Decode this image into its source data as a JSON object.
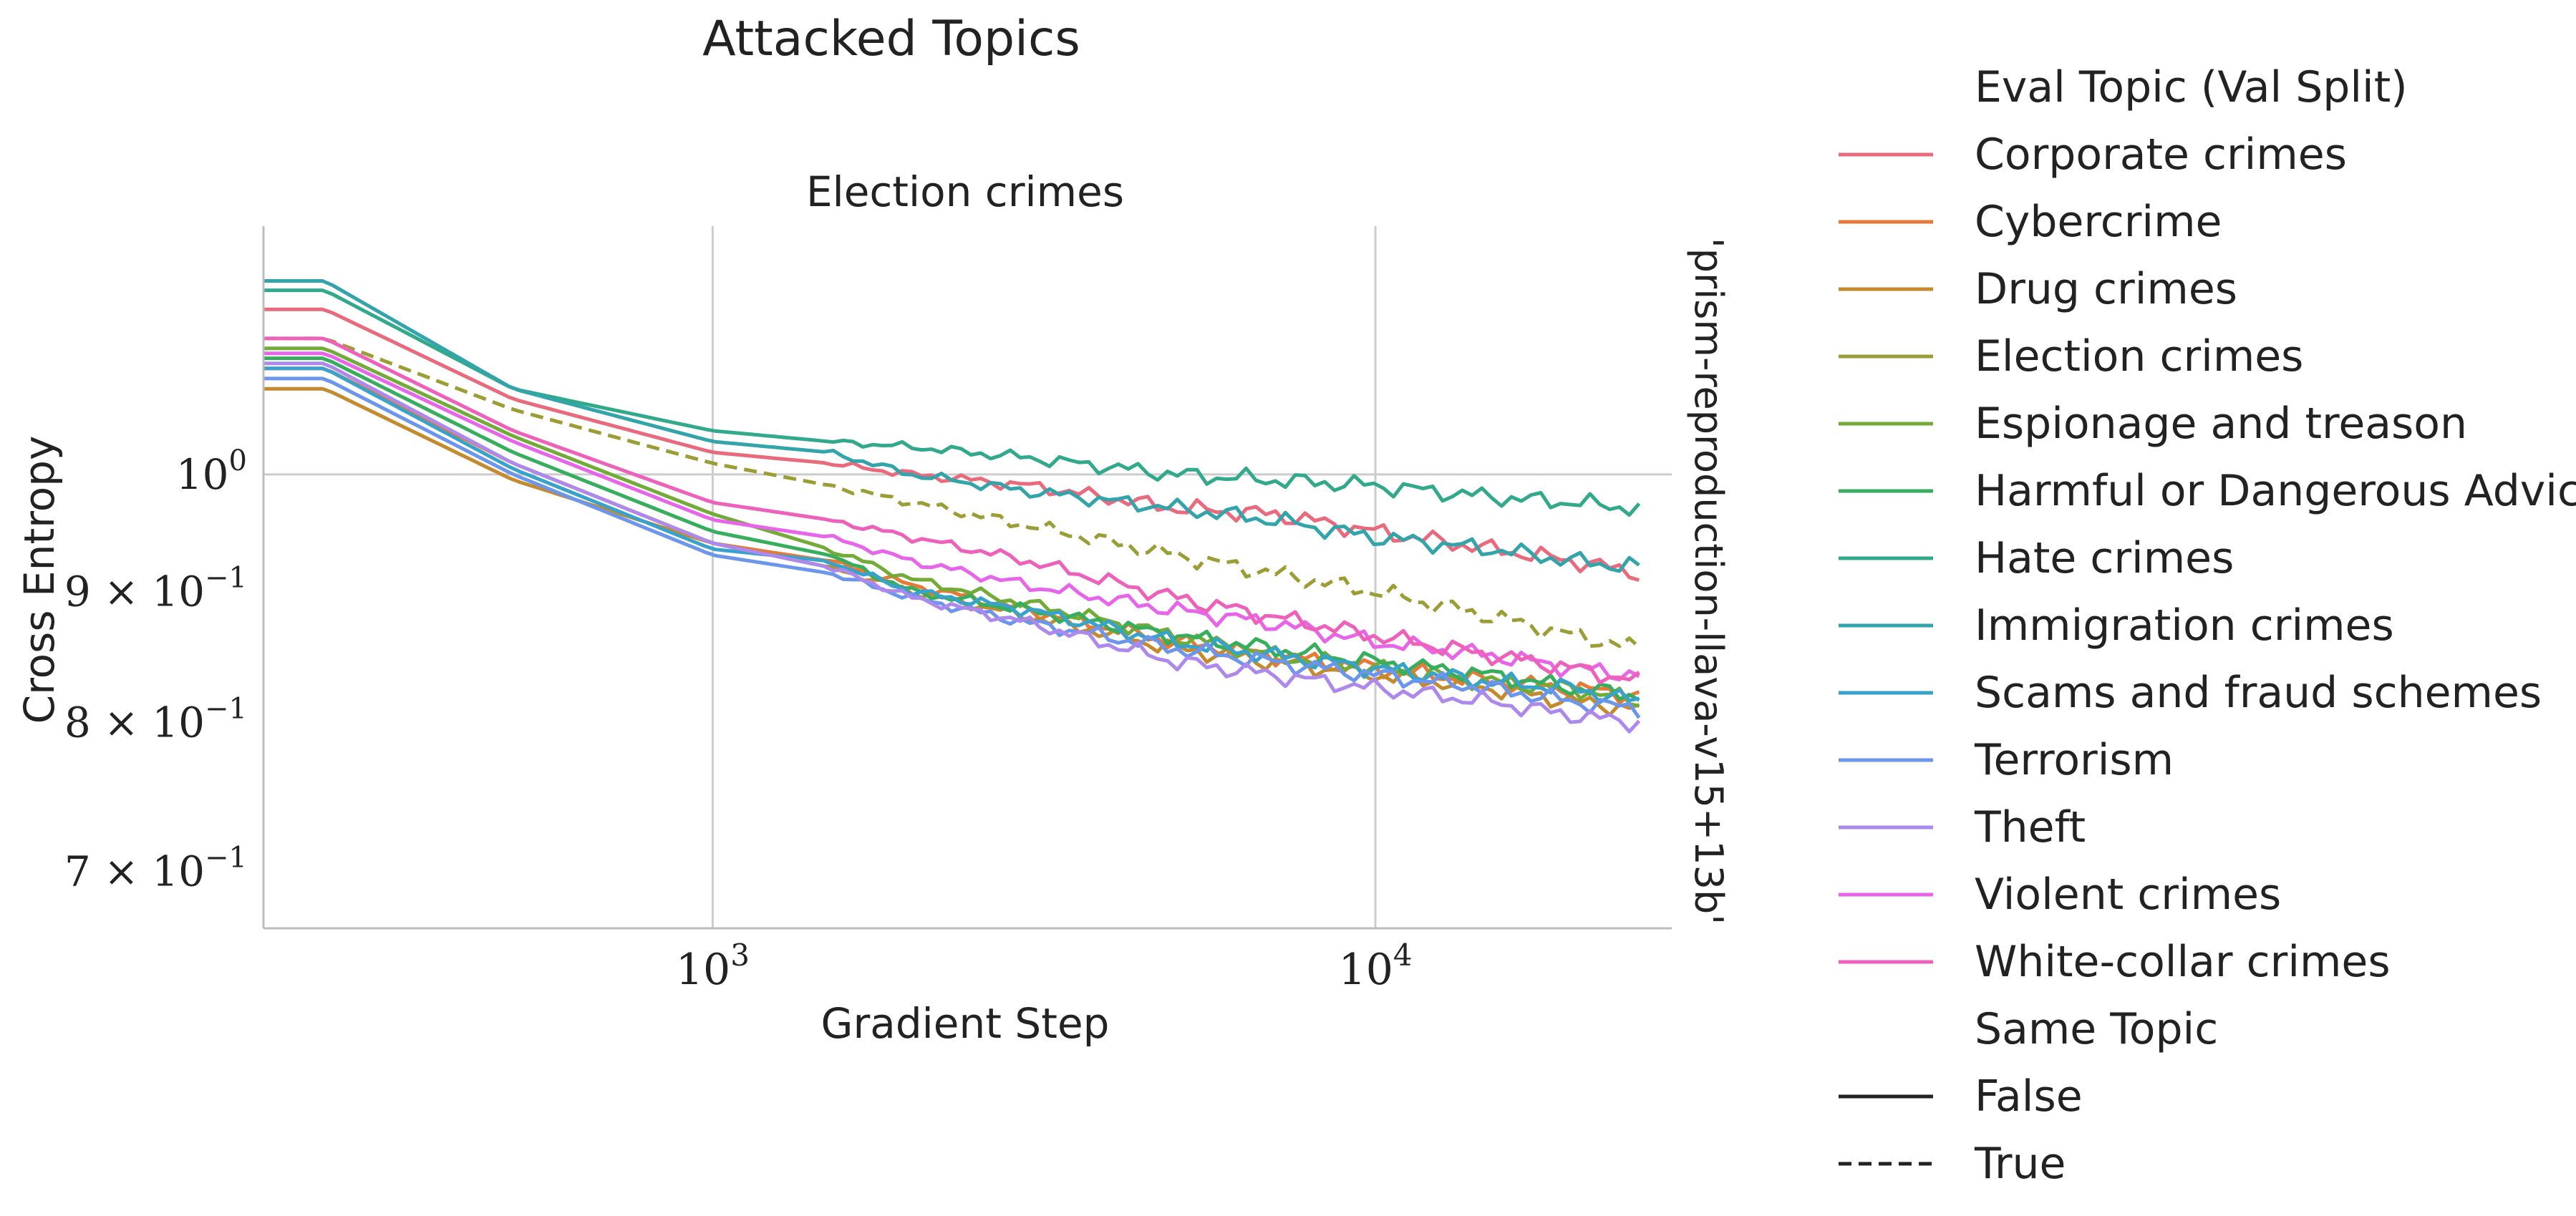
{
  "chart_data": {
    "type": "line",
    "suptitle": "Attacked Topics",
    "title": "Election crimes",
    "xlabel": "Gradient Step",
    "ylabel": "Cross Entropy",
    "side_label": "'prism-reproduction-llava-v15+13b'",
    "xscale": "log",
    "yscale": "log",
    "xlim": [
      210,
      28000
    ],
    "ylim": [
      0.665,
      1.25
    ],
    "xticks": [
      {
        "value": 1000,
        "label": "10",
        "exp": "3"
      },
      {
        "value": 10000,
        "label": "10",
        "exp": "4"
      }
    ],
    "yticks": [
      {
        "value": 1.0,
        "label": "10",
        "exp": "0"
      },
      {
        "value": 0.9,
        "label": "9 × 10",
        "exp": "−1"
      },
      {
        "value": 0.8,
        "label": "8 × 10",
        "exp": "−1"
      },
      {
        "value": 0.7,
        "label": "7 × 10",
        "exp": "−1"
      }
    ],
    "grid": true,
    "legend_position": "right",
    "legend": {
      "hue_title": "Eval Topic (Val Split)",
      "style_title": "Same Topic",
      "styles": [
        {
          "label": "False",
          "dash": "solid"
        },
        {
          "label": "True",
          "dash": "dashed"
        }
      ]
    },
    "x": [
      210,
      260,
      500,
      1000,
      1500,
      2000,
      3000,
      5000,
      7000,
      10000,
      15000,
      20000,
      25000
    ],
    "series": [
      {
        "name": "Corporate crimes",
        "color": "#ea6a7d",
        "dash": false,
        "values": [
          1.16,
          1.16,
          1.07,
          1.02,
          1.01,
          1.0,
          0.99,
          0.97,
          0.965,
          0.95,
          0.935,
          0.925,
          0.915
        ]
      },
      {
        "name": "Cybercrime",
        "color": "#e57937",
        "dash": false,
        "values": [
          1.1,
          1.1,
          1.01,
          0.94,
          0.925,
          0.905,
          0.885,
          0.86,
          0.85,
          0.84,
          0.83,
          0.825,
          0.82
        ]
      },
      {
        "name": "Drug crimes",
        "color": "#c48a2e",
        "dash": false,
        "values": [
          1.08,
          1.08,
          0.995,
          0.94,
          0.92,
          0.9,
          0.88,
          0.855,
          0.845,
          0.835,
          0.825,
          0.815,
          0.81
        ]
      },
      {
        "name": "Election crimes",
        "color": "#9b9e35",
        "dash": true,
        "values": [
          1.13,
          1.13,
          1.06,
          1.01,
          0.99,
          0.975,
          0.955,
          0.93,
          0.915,
          0.9,
          0.88,
          0.865,
          0.855
        ]
      },
      {
        "name": "Espionage and treason",
        "color": "#73ab38",
        "dash": false,
        "values": [
          1.12,
          1.12,
          1.035,
          0.965,
          0.935,
          0.91,
          0.89,
          0.865,
          0.85,
          0.84,
          0.83,
          0.825,
          0.815
        ]
      },
      {
        "name": "Harmful or Dangerous Advice",
        "color": "#36ae5d",
        "dash": false,
        "values": [
          1.11,
          1.11,
          1.02,
          0.95,
          0.93,
          0.9,
          0.885,
          0.865,
          0.855,
          0.845,
          0.835,
          0.825,
          0.82
        ]
      },
      {
        "name": "Hate crimes",
        "color": "#33a98c",
        "dash": false,
        "values": [
          1.18,
          1.18,
          1.08,
          1.04,
          1.03,
          1.025,
          1.015,
          1.0,
          0.995,
          0.99,
          0.98,
          0.975,
          0.97
        ]
      },
      {
        "name": "Immigration crimes",
        "color": "#33a5aa",
        "dash": false,
        "values": [
          1.19,
          1.19,
          1.08,
          1.03,
          1.02,
          1.0,
          0.985,
          0.97,
          0.96,
          0.945,
          0.935,
          0.925,
          0.92
        ]
      },
      {
        "name": "Scams and fraud schemes",
        "color": "#39a2ca",
        "dash": false,
        "values": [
          1.1,
          1.1,
          1.005,
          0.935,
          0.925,
          0.9,
          0.885,
          0.86,
          0.85,
          0.84,
          0.83,
          0.825,
          0.815
        ]
      },
      {
        "name": "Terrorism",
        "color": "#6c95ec",
        "dash": false,
        "values": [
          1.09,
          1.09,
          1.0,
          0.93,
          0.915,
          0.895,
          0.875,
          0.855,
          0.845,
          0.835,
          0.825,
          0.815,
          0.81
        ]
      },
      {
        "name": "Theft",
        "color": "#ae89ec",
        "dash": false,
        "values": [
          1.105,
          1.105,
          1.01,
          0.94,
          0.92,
          0.895,
          0.875,
          0.845,
          0.835,
          0.825,
          0.815,
          0.805,
          0.8
        ]
      },
      {
        "name": "Violent crimes",
        "color": "#e665e9",
        "dash": false,
        "values": [
          1.115,
          1.115,
          1.03,
          0.96,
          0.945,
          0.925,
          0.905,
          0.885,
          0.875,
          0.86,
          0.85,
          0.84,
          0.835
        ]
      },
      {
        "name": "White-collar crimes",
        "color": "#ee61ba",
        "dash": false,
        "values": [
          1.13,
          1.13,
          1.04,
          0.975,
          0.96,
          0.945,
          0.925,
          0.895,
          0.88,
          0.865,
          0.85,
          0.84,
          0.83
        ]
      }
    ]
  }
}
